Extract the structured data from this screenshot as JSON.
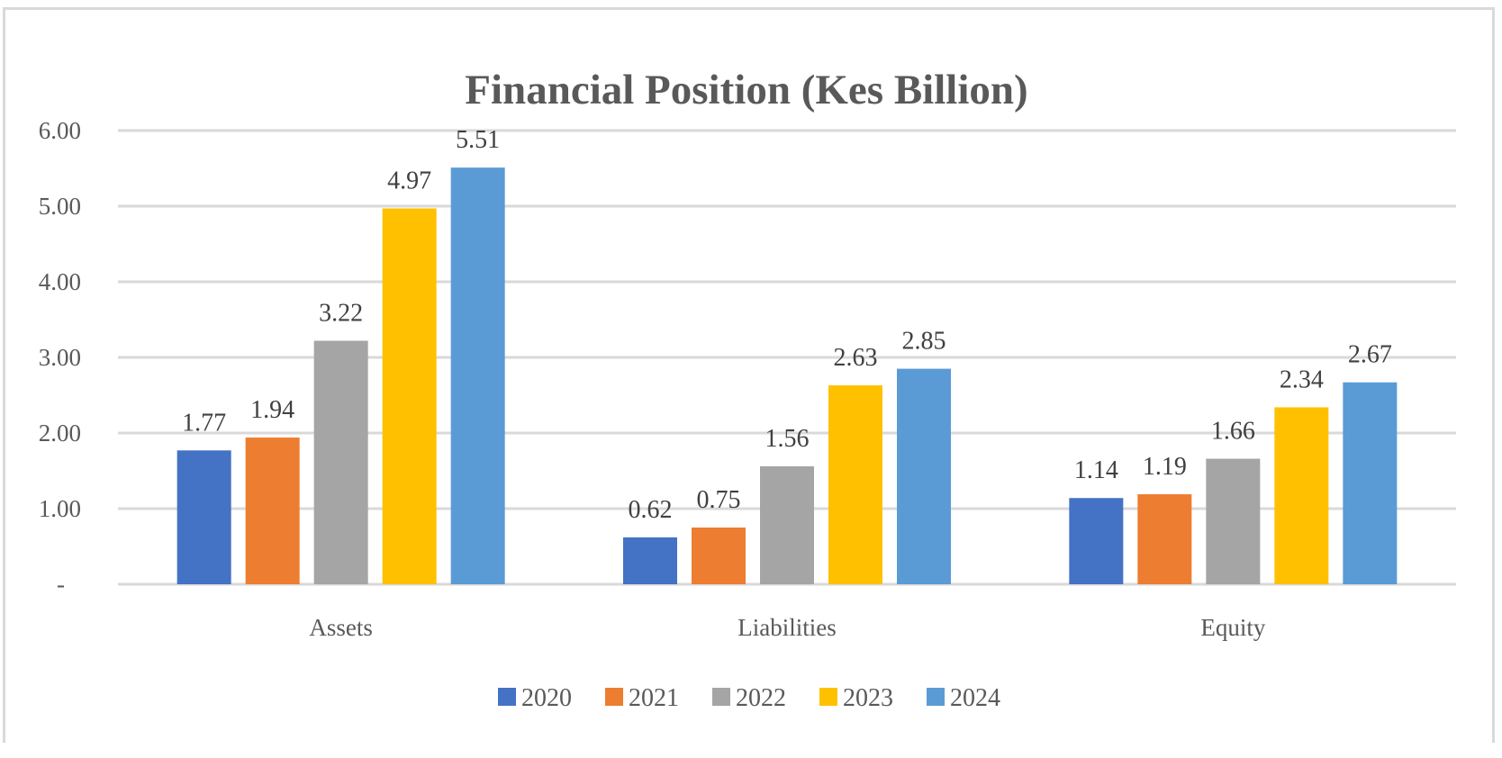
{
  "chart_data": {
    "type": "bar",
    "title": "Financial Position (Kes Billion)",
    "xlabel": "",
    "ylabel": "",
    "categories": [
      "Assets",
      "Liabilities",
      "Equity"
    ],
    "series": [
      {
        "name": "2020",
        "color": "#4472c4",
        "values": [
          1.77,
          0.62,
          1.14
        ],
        "labels": [
          "1.77",
          "0.62",
          "1.14"
        ]
      },
      {
        "name": "2021",
        "color": "#ed7d31",
        "values": [
          1.94,
          0.75,
          1.19
        ],
        "labels": [
          "1.94",
          "0.75",
          "1.19"
        ]
      },
      {
        "name": "2022",
        "color": "#a5a5a5",
        "values": [
          3.22,
          1.56,
          1.66
        ],
        "labels": [
          "3.22",
          "1.56",
          "1.66"
        ]
      },
      {
        "name": "2023",
        "color": "#ffc000",
        "values": [
          4.97,
          2.63,
          2.34
        ],
        "labels": [
          "4.97",
          "2.63",
          "2.34"
        ]
      },
      {
        "name": "2024",
        "color": "#5b9bd5",
        "values": [
          5.51,
          2.85,
          2.67
        ],
        "labels": [
          "5.51",
          "2.85",
          "2.67"
        ]
      }
    ],
    "ylim": [
      0,
      6
    ],
    "yticks": [
      0,
      1,
      2,
      3,
      4,
      5,
      6
    ],
    "ytick_labels": [
      "-",
      "1.00",
      "2.00",
      "3.00",
      "4.00",
      "5.00",
      "6.00"
    ],
    "grid": true,
    "legend_position": "bottom-center"
  }
}
